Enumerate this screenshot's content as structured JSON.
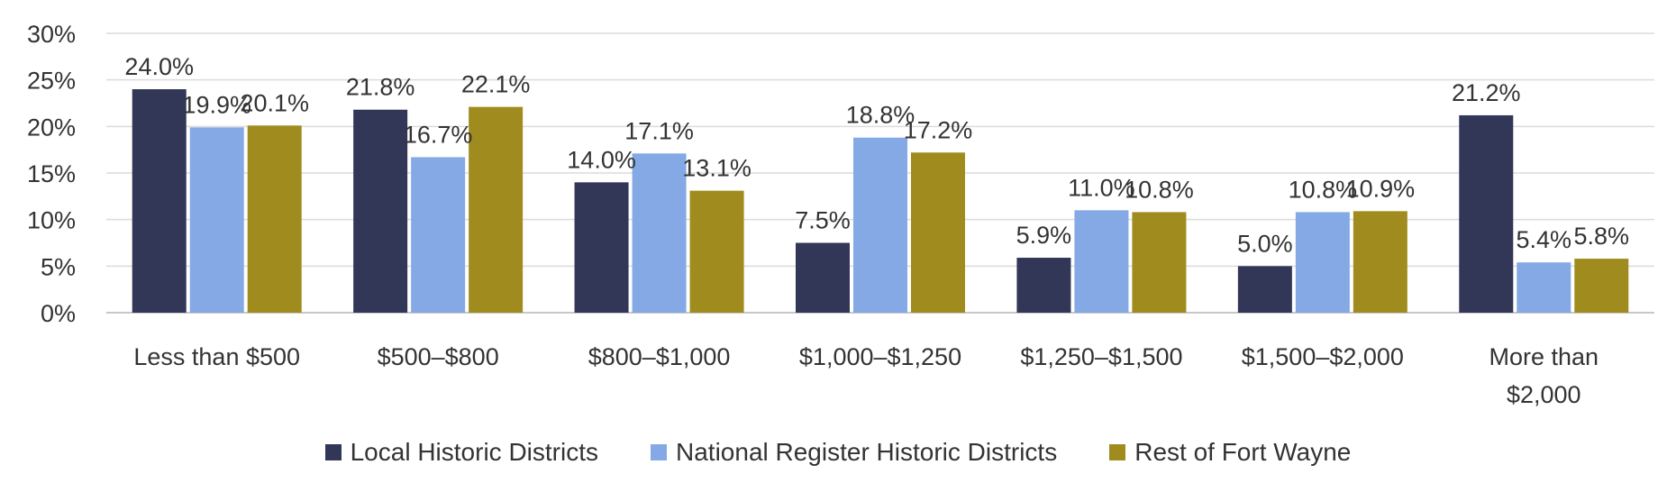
{
  "chart_data": {
    "type": "bar",
    "categories": [
      "Less than $500",
      "$500–$800",
      "$800–$1,000",
      "$1,000–$1,250",
      "$1,250–$1,500",
      "$1,500–$2,000",
      "More than $2,000"
    ],
    "series": [
      {
        "name": "Local Historic Districts",
        "color": "#323657",
        "values": [
          24.0,
          21.8,
          14.0,
          7.5,
          5.9,
          5.0,
          21.2
        ]
      },
      {
        "name": "National Register Historic Districts",
        "color": "#84a9e4",
        "values": [
          19.9,
          16.7,
          17.1,
          18.8,
          11.0,
          10.8,
          5.4
        ]
      },
      {
        "name": "Rest of Fort Wayne",
        "color": "#a08c1e",
        "values": [
          20.1,
          22.1,
          13.1,
          17.2,
          10.8,
          10.9,
          5.8
        ]
      }
    ],
    "yticks": [
      "0%",
      "5%",
      "10%",
      "15%",
      "20%",
      "25%",
      "30%"
    ],
    "ylim": [
      0,
      30
    ],
    "grid": true,
    "legend_position": "bottom",
    "value_format": "percent_1dp"
  }
}
